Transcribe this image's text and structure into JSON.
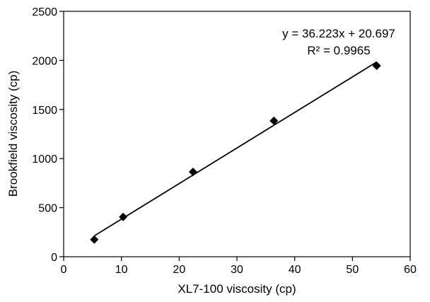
{
  "chart_data": {
    "type": "scatter",
    "xlabel": "XL7-100 viscosity (cp)",
    "ylabel": "Brookfield viscosity (cp)",
    "xlim": [
      0,
      60
    ],
    "ylim": [
      0,
      2500
    ],
    "x_ticks": [
      0,
      10,
      20,
      30,
      40,
      50,
      60
    ],
    "y_ticks": [
      0,
      500,
      1000,
      1500,
      2000,
      2500
    ],
    "grid": false,
    "legend": "none",
    "marker": "diamond",
    "marker_color": "#000000",
    "points": [
      {
        "x": 5.3,
        "y": 175
      },
      {
        "x": 10.3,
        "y": 405
      },
      {
        "x": 22.4,
        "y": 865
      },
      {
        "x": 36.4,
        "y": 1385
      },
      {
        "x": 54.2,
        "y": 1945
      }
    ],
    "trendline": {
      "slope": 36.223,
      "intercept": 20.697,
      "x_range": [
        5.3,
        54.2
      ],
      "equation": "y = 36.223x + 20.697",
      "r_squared": "R² = 0.9965"
    }
  }
}
